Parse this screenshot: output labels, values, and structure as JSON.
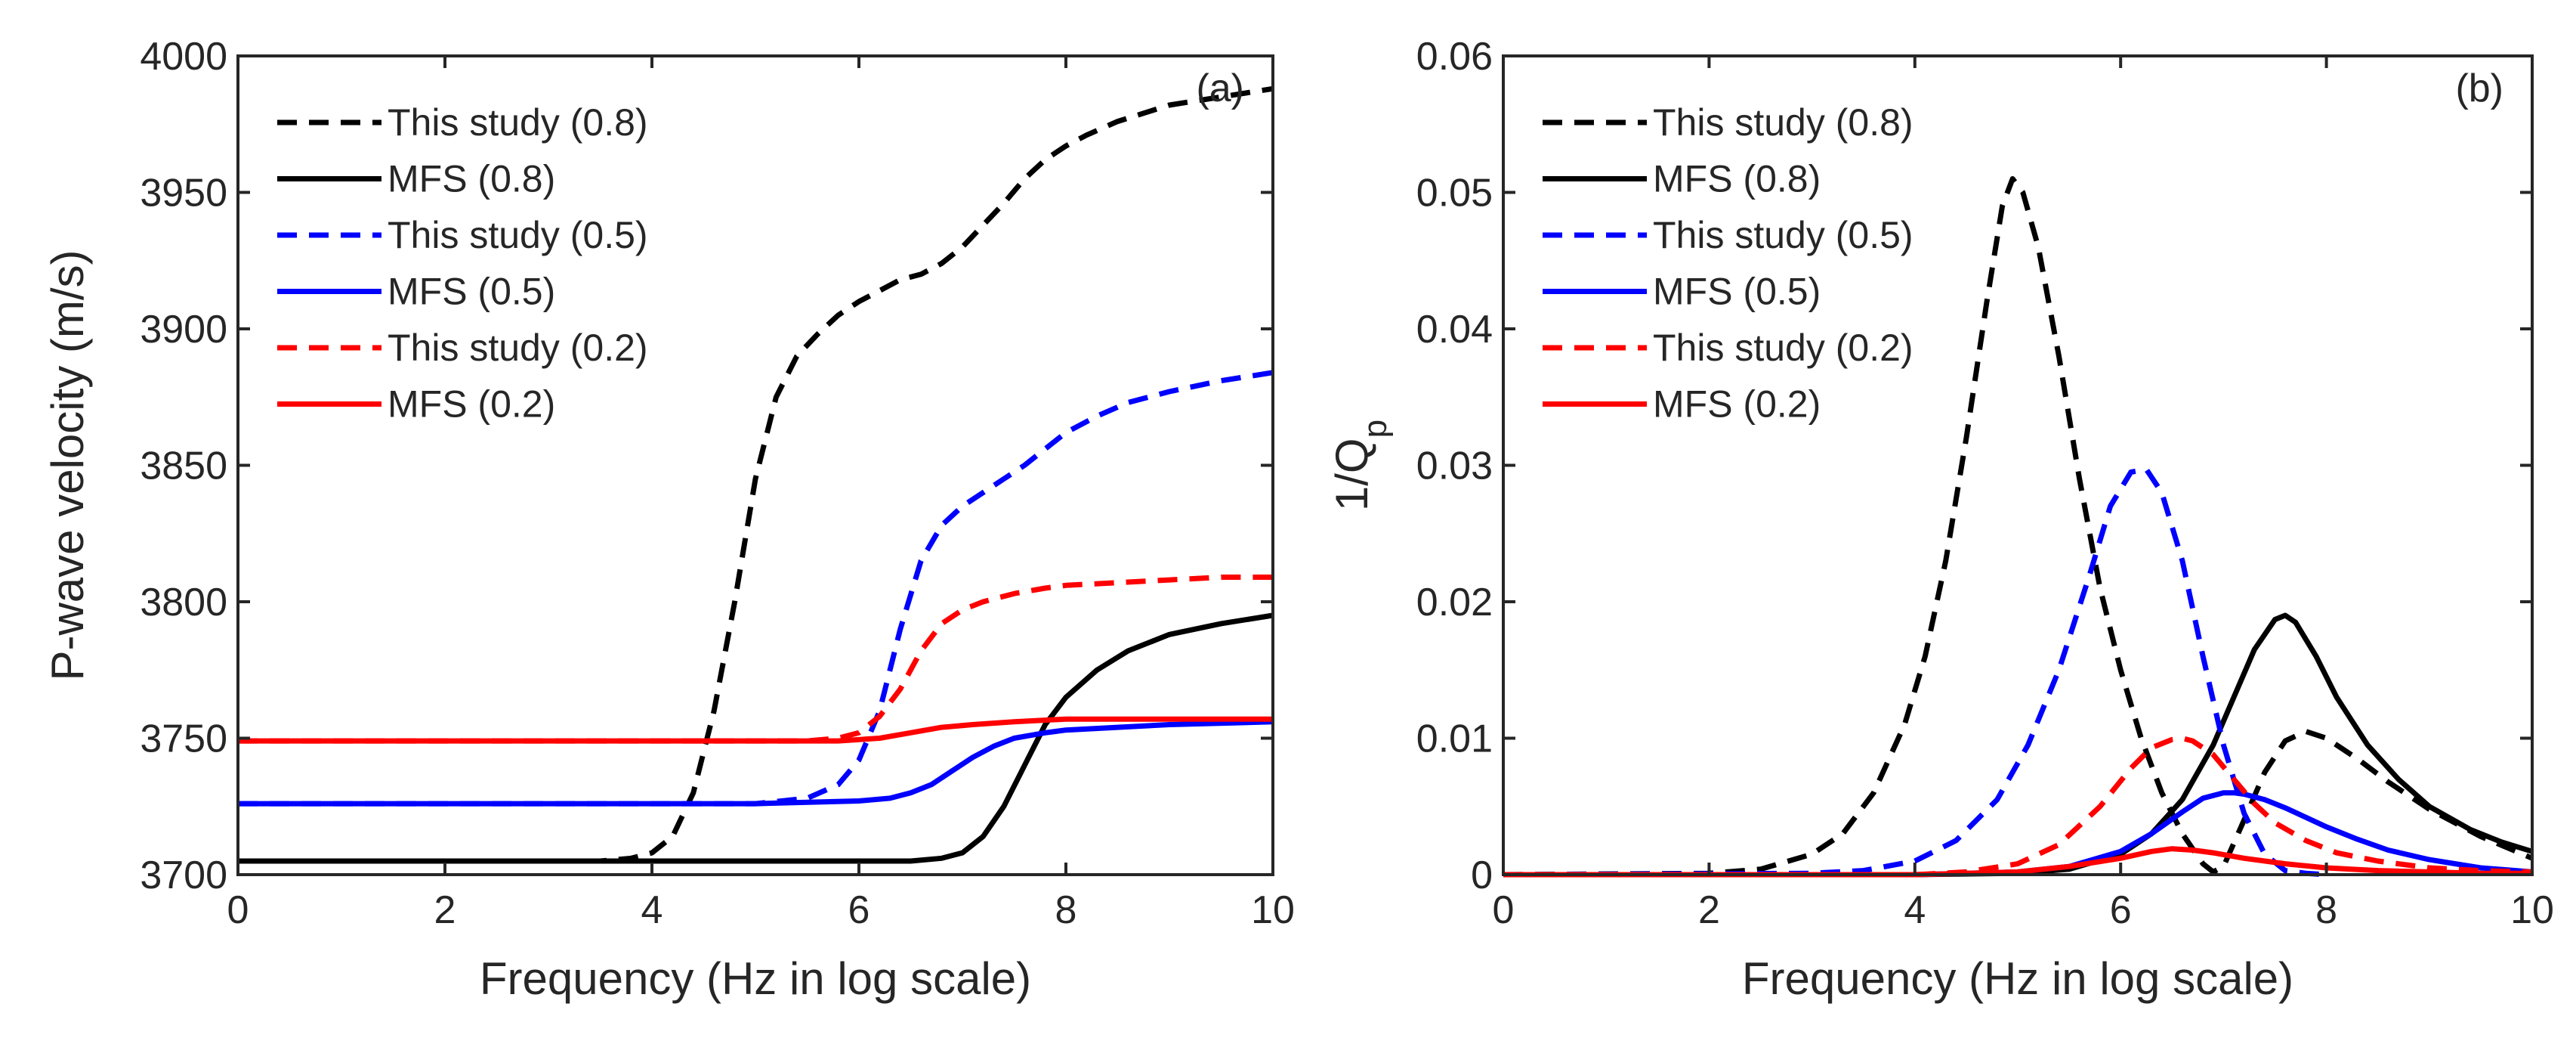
{
  "chart_data": [
    {
      "type": "line",
      "panel_label": "(a)",
      "xlabel": "Frequency (Hz in log scale)",
      "ylabel": "P-wave velocity (m/s)",
      "xlim": [
        0,
        10
      ],
      "ylim": [
        3700,
        4000
      ],
      "xticks": [
        0,
        2,
        4,
        6,
        8,
        10
      ],
      "yticks": [
        3700,
        3750,
        3800,
        3850,
        3900,
        3950,
        4000
      ],
      "grid": false,
      "legend_position": "top-left",
      "series": [
        {
          "name": "This study (0.8)",
          "color": "#000000",
          "dash": "dashed",
          "x": [
            0,
            1,
            2,
            3,
            3.5,
            3.8,
            4,
            4.2,
            4.4,
            4.6,
            4.8,
            5,
            5.2,
            5.4,
            5.6,
            5.8,
            6,
            6.2,
            6.4,
            6.6,
            6.8,
            7,
            7.2,
            7.4,
            7.6,
            7.8,
            8,
            8.2,
            8.5,
            9,
            9.5,
            10
          ],
          "y": [
            3705,
            3705,
            3705,
            3705,
            3705,
            3706,
            3708,
            3714,
            3730,
            3760,
            3800,
            3845,
            3875,
            3890,
            3898,
            3905,
            3910,
            3914,
            3918,
            3920,
            3924,
            3930,
            3938,
            3946,
            3955,
            3962,
            3967,
            3971,
            3976,
            3982,
            3985,
            3988
          ]
        },
        {
          "name": "MFS (0.8)",
          "color": "#000000",
          "dash": "solid",
          "x": [
            0,
            2,
            4,
            5,
            6,
            6.5,
            6.8,
            7,
            7.2,
            7.4,
            7.6,
            7.8,
            8,
            8.3,
            8.6,
            9,
            9.5,
            10
          ],
          "y": [
            3705,
            3705,
            3705,
            3705,
            3705,
            3705,
            3706,
            3708,
            3714,
            3725,
            3740,
            3755,
            3765,
            3775,
            3782,
            3788,
            3792,
            3795
          ]
        },
        {
          "name": "This study (0.5)",
          "color": "#0000ff",
          "dash": "dashed",
          "x": [
            0,
            2,
            4,
            5,
            5.5,
            5.8,
            6,
            6.2,
            6.4,
            6.6,
            6.8,
            7,
            7.2,
            7.4,
            7.6,
            7.8,
            8,
            8.3,
            8.6,
            9,
            9.5,
            10
          ],
          "y": [
            3726,
            3726,
            3726,
            3726,
            3728,
            3733,
            3742,
            3760,
            3790,
            3815,
            3828,
            3835,
            3840,
            3845,
            3850,
            3856,
            3862,
            3868,
            3873,
            3877,
            3881,
            3884
          ]
        },
        {
          "name": "MFS (0.5)",
          "color": "#0000ff",
          "dash": "solid",
          "x": [
            0,
            2,
            4,
            5,
            6,
            6.3,
            6.5,
            6.7,
            6.9,
            7.1,
            7.3,
            7.5,
            7.8,
            8,
            8.5,
            9,
            10
          ],
          "y": [
            3726,
            3726,
            3726,
            3726,
            3727,
            3728,
            3730,
            3733,
            3738,
            3743,
            3747,
            3750,
            3752,
            3753,
            3754,
            3755,
            3756
          ]
        },
        {
          "name": "This study (0.2)",
          "color": "#ff0000",
          "dash": "dashed",
          "x": [
            0,
            2,
            4,
            5,
            5.5,
            5.8,
            6,
            6.2,
            6.4,
            6.6,
            6.8,
            7,
            7.2,
            7.5,
            7.8,
            8,
            8.5,
            9,
            9.5,
            10
          ],
          "y": [
            3749,
            3749,
            3749,
            3749,
            3749,
            3750,
            3752,
            3758,
            3768,
            3782,
            3792,
            3797,
            3800,
            3803,
            3805,
            3806,
            3807,
            3808,
            3809,
            3809
          ]
        },
        {
          "name": "MFS (0.2)",
          "color": "#ff0000",
          "dash": "solid",
          "x": [
            0,
            2,
            4,
            5,
            5.8,
            6.2,
            6.5,
            6.8,
            7.1,
            7.5,
            8,
            9,
            10
          ],
          "y": [
            3749,
            3749,
            3749,
            3749,
            3749,
            3750,
            3752,
            3754,
            3755,
            3756,
            3757,
            3757,
            3757
          ]
        }
      ]
    },
    {
      "type": "line",
      "panel_label": "(b)",
      "xlabel": "Frequency (Hz in log scale)",
      "ylabel": "1/Q",
      "ylabel_subscript": "p",
      "xlim": [
        0,
        10
      ],
      "ylim": [
        0,
        0.06
      ],
      "xticks": [
        0,
        2,
        4,
        6,
        8,
        10
      ],
      "yticks": [
        0,
        0.01,
        0.02,
        0.03,
        0.04,
        0.05,
        0.06
      ],
      "grid": false,
      "legend_position": "top-left",
      "series": [
        {
          "name": "This study (0.8)",
          "color": "#000000",
          "dash": "dashed",
          "x": [
            0,
            2,
            2.5,
            3,
            3.3,
            3.6,
            3.9,
            4.1,
            4.3,
            4.5,
            4.7,
            4.85,
            4.95,
            5.05,
            5.2,
            5.4,
            5.6,
            5.8,
            6,
            6.2,
            6.4,
            6.6,
            6.8,
            6.9,
            7.0,
            7.2,
            7.4,
            7.6,
            7.8,
            8,
            8.3,
            8.6,
            9,
            9.5,
            10
          ],
          "y": [
            0,
            0.0001,
            0.0004,
            0.0015,
            0.003,
            0.006,
            0.011,
            0.016,
            0.023,
            0.032,
            0.042,
            0.049,
            0.051,
            0.05,
            0.046,
            0.038,
            0.029,
            0.021,
            0.015,
            0.01,
            0.006,
            0.003,
            0.0008,
            0.0002,
            0.0006,
            0.004,
            0.0075,
            0.0098,
            0.0105,
            0.01,
            0.0085,
            0.0068,
            0.0048,
            0.0028,
            0.0012
          ]
        },
        {
          "name": "MFS (0.8)",
          "color": "#000000",
          "dash": "solid",
          "x": [
            0,
            4,
            5,
            5.5,
            6,
            6.3,
            6.6,
            6.9,
            7.1,
            7.3,
            7.5,
            7.6,
            7.7,
            7.9,
            8.1,
            8.4,
            8.7,
            9,
            9.4,
            9.7,
            10
          ],
          "y": [
            0,
            0,
            0.0001,
            0.0004,
            0.0015,
            0.003,
            0.0055,
            0.0095,
            0.013,
            0.0165,
            0.0187,
            0.019,
            0.0185,
            0.016,
            0.013,
            0.0095,
            0.007,
            0.005,
            0.0033,
            0.0024,
            0.0017
          ]
        },
        {
          "name": "This study (0.5)",
          "color": "#0000ff",
          "dash": "dashed",
          "x": [
            0,
            3,
            3.5,
            4,
            4.4,
            4.8,
            5.1,
            5.4,
            5.7,
            5.9,
            6.1,
            6.25,
            6.4,
            6.6,
            6.8,
            7,
            7.2,
            7.4,
            7.6,
            7.8,
            8
          ],
          "y": [
            0,
            0.0001,
            0.0003,
            0.001,
            0.0025,
            0.0055,
            0.0095,
            0.015,
            0.022,
            0.027,
            0.0295,
            0.0297,
            0.028,
            0.023,
            0.016,
            0.0095,
            0.0045,
            0.0015,
            0.0003,
            0.0001,
            0
          ]
        },
        {
          "name": "MFS (0.5)",
          "color": "#0000ff",
          "dash": "solid",
          "x": [
            0,
            4,
            5,
            5.5,
            6,
            6.3,
            6.6,
            6.8,
            7.0,
            7.1,
            7.2,
            7.4,
            7.6,
            7.8,
            8,
            8.3,
            8.6,
            9,
            9.5,
            10
          ],
          "y": [
            0,
            0,
            0.0002,
            0.0006,
            0.0017,
            0.003,
            0.0046,
            0.0056,
            0.006,
            0.006,
            0.0059,
            0.0055,
            0.0049,
            0.0042,
            0.0035,
            0.0026,
            0.0018,
            0.0011,
            0.0005,
            0.0002
          ]
        },
        {
          "name": "This study (0.2)",
          "color": "#ff0000",
          "dash": "dashed",
          "x": [
            0,
            4,
            4.5,
            5,
            5.4,
            5.8,
            6.1,
            6.3,
            6.5,
            6.6,
            6.7,
            6.9,
            7.1,
            7.3,
            7.5,
            7.8,
            8.1,
            8.5,
            9,
            9.5,
            10
          ],
          "y": [
            0,
            0,
            0.0002,
            0.0008,
            0.0022,
            0.005,
            0.0078,
            0.0093,
            0.0099,
            0.01,
            0.0098,
            0.0088,
            0.007,
            0.0052,
            0.0038,
            0.0025,
            0.0016,
            0.001,
            0.0005,
            0.0003,
            0.0002
          ]
        },
        {
          "name": "MFS (0.2)",
          "color": "#ff0000",
          "dash": "solid",
          "x": [
            0,
            4,
            5,
            5.5,
            6,
            6.3,
            6.5,
            6.7,
            6.9,
            7.2,
            7.6,
            8,
            8.5,
            9,
            9.5,
            10
          ],
          "y": [
            0,
            0,
            0.0002,
            0.0006,
            0.0012,
            0.0017,
            0.0019,
            0.0018,
            0.0016,
            0.0012,
            0.0008,
            0.0005,
            0.0003,
            0.0002,
            0.0001,
            0.0001
          ]
        }
      ]
    }
  ]
}
